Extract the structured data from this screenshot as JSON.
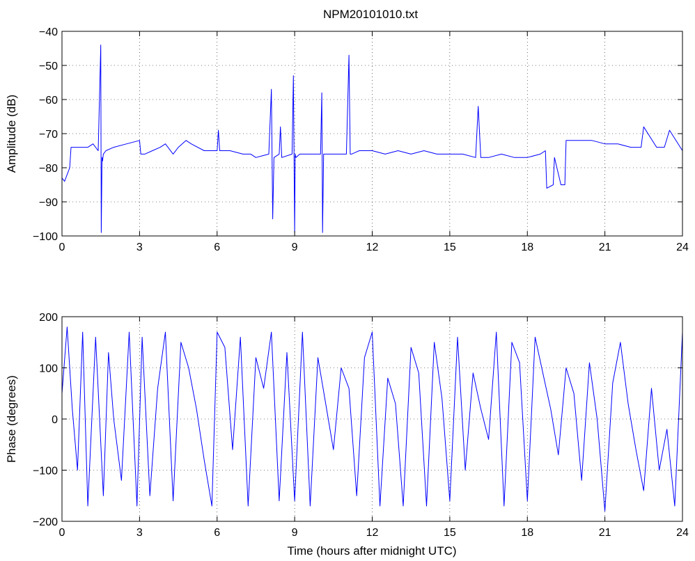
{
  "figure": {
    "title": "NPM20101010.txt",
    "series_color": "#0000ff"
  },
  "chart_data": [
    {
      "type": "line",
      "title": "NPM20101010.txt",
      "xlabel": "",
      "ylabel": "Amplitude (dB)",
      "xlim": [
        0,
        24
      ],
      "ylim": [
        -100,
        -40
      ],
      "xticks": [
        0,
        3,
        6,
        9,
        12,
        15,
        18,
        21,
        24
      ],
      "yticks": [
        -100,
        -90,
        -80,
        -70,
        -60,
        -50,
        -40
      ],
      "grid": true,
      "series": [
        {
          "color": "#0000ff",
          "x": [
            0.0,
            0.1,
            0.2,
            0.3,
            0.35,
            0.5,
            0.8,
            1.0,
            1.2,
            1.4,
            1.45,
            1.5,
            1.52,
            1.55,
            1.57,
            1.6,
            1.7,
            2.0,
            2.5,
            3.0,
            3.05,
            3.2,
            3.5,
            3.8,
            4.0,
            4.3,
            4.5,
            4.8,
            5.0,
            5.5,
            6.0,
            6.05,
            6.1,
            6.5,
            7.0,
            7.3,
            7.5,
            8.0,
            8.1,
            8.15,
            8.2,
            8.4,
            8.45,
            8.5,
            8.9,
            8.95,
            9.0,
            9.02,
            9.05,
            9.2,
            9.5,
            10.0,
            10.05,
            10.08,
            10.12,
            10.2,
            10.5,
            11.0,
            11.1,
            11.15,
            11.2,
            11.5,
            12.0,
            12.5,
            13.0,
            13.5,
            14.0,
            14.5,
            15.0,
            15.5,
            16.0,
            16.1,
            16.2,
            16.5,
            17.0,
            17.5,
            18.0,
            18.5,
            18.7,
            18.75,
            19.0,
            19.05,
            19.3,
            19.45,
            19.5,
            20.0,
            20.5,
            21.0,
            21.5,
            22.0,
            22.4,
            22.5,
            23.0,
            23.3,
            23.5,
            24.0
          ],
          "values": [
            -83,
            -84,
            -82,
            -80,
            -74,
            -74,
            -74,
            -74,
            -73,
            -75,
            -60,
            -44,
            -99,
            -77,
            -78,
            -76,
            -75,
            -74,
            -73,
            -72,
            -76,
            -76,
            -75,
            -74,
            -73,
            -76,
            -74,
            -72,
            -73,
            -75,
            -75,
            -69,
            -75,
            -75,
            -76,
            -76,
            -77,
            -76,
            -57,
            -95,
            -77,
            -76,
            -68,
            -77,
            -76,
            -53,
            -99,
            -76,
            -77,
            -76,
            -76,
            -76,
            -58,
            -99,
            -76,
            -76,
            -76,
            -76,
            -47,
            -76,
            -76,
            -75,
            -75,
            -76,
            -75,
            -76,
            -75,
            -76,
            -76,
            -76,
            -77,
            -62,
            -77,
            -77,
            -76,
            -77,
            -77,
            -76,
            -75,
            -86,
            -85,
            -77,
            -85,
            -85,
            -72,
            -72,
            -72,
            -73,
            -73,
            -74,
            -74,
            -68,
            -74,
            -74,
            -69,
            -75
          ]
        }
      ]
    },
    {
      "type": "line",
      "title": "",
      "xlabel": "Time (hours after midnight UTC)",
      "ylabel": "Phase (degrees)",
      "xlim": [
        0,
        24
      ],
      "ylim": [
        -200,
        200
      ],
      "xticks": [
        0,
        3,
        6,
        9,
        12,
        15,
        18,
        21,
        24
      ],
      "yticks": [
        -200,
        -100,
        0,
        100,
        200
      ],
      "grid": true,
      "series": [
        {
          "color": "#0000ff",
          "x": [
            0.0,
            0.2,
            0.4,
            0.6,
            0.8,
            1.0,
            1.3,
            1.6,
            1.8,
            2.0,
            2.3,
            2.6,
            2.9,
            3.1,
            3.4,
            3.7,
            4.0,
            4.3,
            4.6,
            4.9,
            5.2,
            5.5,
            5.8,
            6.0,
            6.3,
            6.6,
            6.9,
            7.2,
            7.5,
            7.8,
            8.1,
            8.4,
            8.7,
            9.0,
            9.3,
            9.6,
            9.9,
            10.2,
            10.5,
            10.8,
            11.1,
            11.4,
            11.7,
            12.0,
            12.3,
            12.6,
            12.9,
            13.2,
            13.5,
            13.8,
            14.1,
            14.4,
            14.7,
            15.0,
            15.3,
            15.6,
            15.9,
            16.2,
            16.5,
            16.8,
            17.1,
            17.4,
            17.7,
            18.0,
            18.3,
            18.6,
            18.9,
            19.2,
            19.5,
            19.8,
            20.1,
            20.4,
            20.7,
            21.0,
            21.3,
            21.6,
            21.9,
            22.2,
            22.5,
            22.8,
            23.1,
            23.4,
            23.7,
            24.0
          ],
          "values": [
            50,
            180,
            20,
            -100,
            170,
            -170,
            160,
            -150,
            130,
            0,
            -120,
            170,
            -170,
            160,
            -150,
            60,
            170,
            -160,
            150,
            100,
            20,
            -80,
            -170,
            170,
            140,
            -60,
            160,
            -170,
            120,
            60,
            170,
            -160,
            130,
            -160,
            170,
            -170,
            120,
            30,
            -60,
            100,
            60,
            -150,
            120,
            170,
            -170,
            80,
            30,
            -170,
            140,
            90,
            -170,
            150,
            40,
            -160,
            160,
            -100,
            90,
            20,
            -40,
            170,
            -170,
            150,
            110,
            -160,
            160,
            90,
            20,
            -70,
            100,
            50,
            -120,
            110,
            0,
            -180,
            70,
            150,
            30,
            -60,
            -140,
            60,
            -100,
            -20,
            -170,
            170
          ]
        }
      ]
    }
  ]
}
